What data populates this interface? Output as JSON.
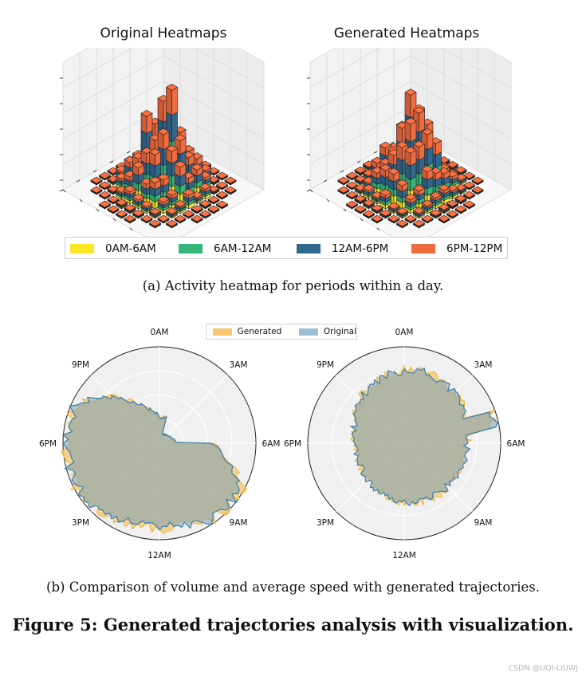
{
  "chart_data": [
    {
      "type": "bar3d",
      "title": "Original Heatmaps",
      "series": [
        "0AM-6AM",
        "6AM-12AM",
        "12AM-6PM",
        "6PM-12PM"
      ]
    },
    {
      "type": "bar3d",
      "title": "Generated Heatmaps",
      "series": [
        "0AM-6AM",
        "6AM-12AM",
        "12AM-6PM",
        "6PM-12PM"
      ]
    },
    {
      "type": "polar-area",
      "legend": [
        "Generated",
        "Original"
      ],
      "angular_labels": [
        "0AM",
        "3AM",
        "6AM",
        "9AM",
        "12AM",
        "3PM",
        "6PM",
        "9PM"
      ]
    },
    {
      "type": "polar-area",
      "angular_labels": [
        "0AM",
        "3AM",
        "6AM",
        "9AM",
        "12AM",
        "3PM",
        "6PM",
        "9PM"
      ]
    }
  ],
  "titles": {
    "left": "Original Heatmaps",
    "right": "Generated Heatmaps"
  },
  "legend_a": [
    {
      "label": "0AM-6AM",
      "color": "#fde725"
    },
    {
      "label": "6AM-12AM",
      "color": "#35b779"
    },
    {
      "label": "12AM-6PM",
      "color": "#31688e"
    },
    {
      "label": "6PM-12PM",
      "color": "#f06b3e"
    }
  ],
  "legend_b": [
    {
      "label": "Generated",
      "color": "#f6c770"
    },
    {
      "label": "Original",
      "color": "#9dbfd4"
    }
  ],
  "polar_labels": [
    "0AM",
    "3AM",
    "6AM",
    "9AM",
    "12AM",
    "3PM",
    "6PM",
    "9PM"
  ],
  "caption_a": "(a)  Activity heatmap for periods within a day.",
  "caption_b": "(b)  Comparison of volume and average speed with generated trajectories.",
  "figure_title": "Figure 5: Generated trajectories analysis with visualization.",
  "watermark": "CSDN @UQI-LIUWJ"
}
